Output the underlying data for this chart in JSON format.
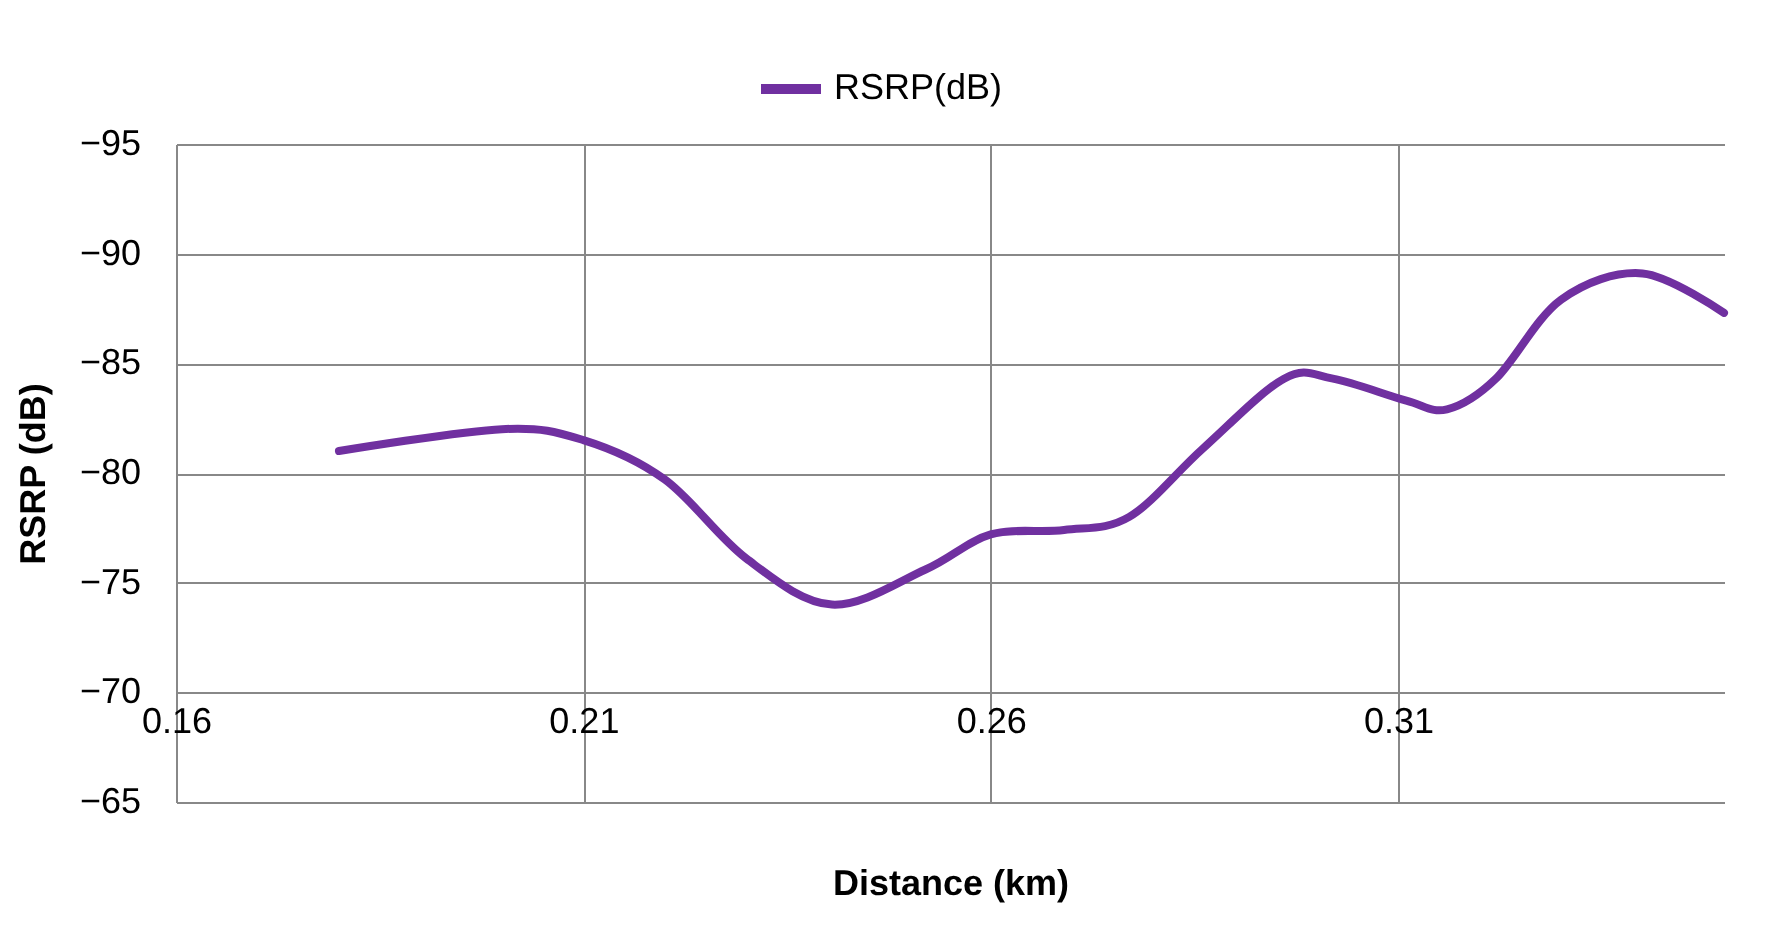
{
  "chart_data": {
    "type": "line",
    "xlabel": "Distance (km)",
    "ylabel": "RSRP (dB)",
    "series": [
      {
        "name": "RSRP(dB)",
        "color": "#7030a0",
        "x": [
          0.18,
          0.2,
          0.21,
          0.22,
          0.23,
          0.2405,
          0.252,
          0.26,
          0.269,
          0.277,
          0.286,
          0.296,
          0.302,
          0.311,
          0.316,
          0.322,
          0.33,
          0.34,
          0.35
        ],
        "values": [
          -81,
          -82,
          -81.5,
          -79.7,
          -76.1,
          -74,
          -75.6,
          -77.2,
          -77.4,
          -78,
          -81.1,
          -84.3,
          -84.3,
          -83.3,
          -82.9,
          -84.3,
          -87.9,
          -89.1,
          -87.3
        ]
      }
    ],
    "xlim": [
      0.16,
      0.35
    ],
    "xticks": [
      0.16,
      0.21,
      0.26,
      0.31
    ],
    "ylim": [
      -65,
      -95
    ],
    "yticks": [
      -95,
      -90,
      -85,
      -80,
      -75,
      -70,
      -65
    ],
    "grid": true,
    "legend": "top",
    "line_style": "solid",
    "marker": "none"
  }
}
